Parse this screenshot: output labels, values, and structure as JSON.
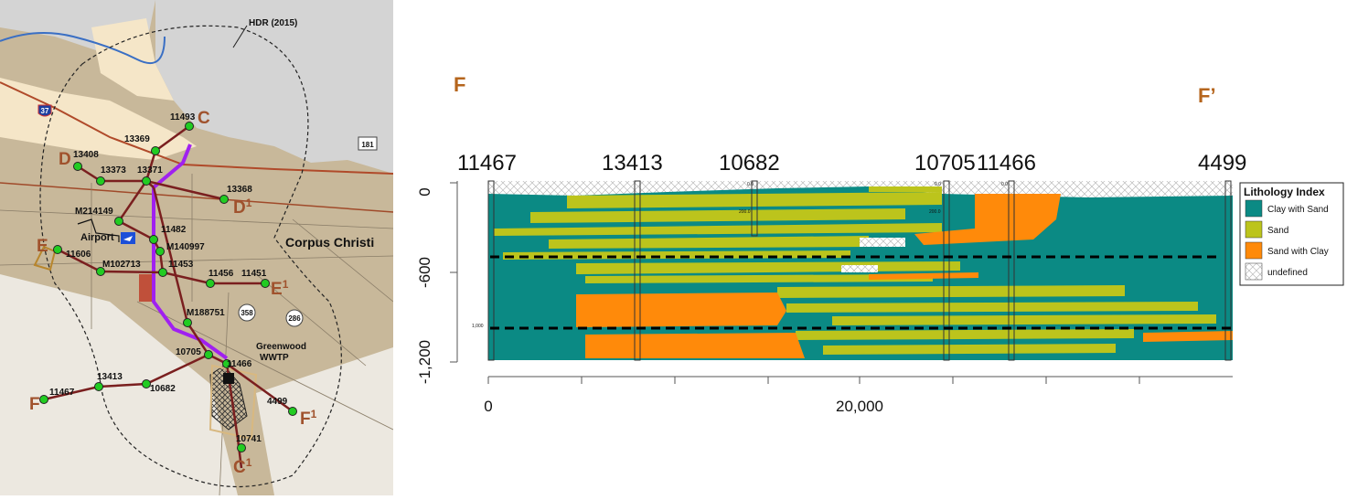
{
  "map": {
    "study_area_label": "HDR (2015)",
    "city_label": "Corpus Christi",
    "airport_label": "Airport",
    "wwtp_label_line1": "Greenwood",
    "wwtp_label_line2": "WWTP",
    "highway_shields": [
      "37",
      "181",
      "358",
      "286"
    ],
    "endpoints": [
      {
        "letter": "C",
        "sup": ""
      },
      {
        "letter": "C",
        "sup": "1"
      },
      {
        "letter": "D",
        "sup": ""
      },
      {
        "letter": "D",
        "sup": "1"
      },
      {
        "letter": "E",
        "sup": ""
      },
      {
        "letter": "E",
        "sup": "1"
      },
      {
        "letter": "F",
        "sup": ""
      },
      {
        "letter": "F",
        "sup": "1"
      }
    ],
    "wells": [
      "11493",
      "13369",
      "13408",
      "13373",
      "13371",
      "13368",
      "M214149",
      "11482",
      "M140997",
      "11606",
      "M102713",
      "11453",
      "11456",
      "11451",
      "M188751",
      "10705",
      "11466",
      "11467",
      "13413",
      "10682",
      "4499",
      "10741"
    ],
    "colors": {
      "land": "#c8b89a",
      "urban": "#f5e6c8",
      "water": "#d4d4d4",
      "route": "#7a1f1f",
      "pipeline": "#a020f0",
      "well": "#22cc22",
      "endpoint": "#a0522d"
    }
  },
  "section": {
    "start_label": "F",
    "end_label": "F’",
    "well_labels": [
      "11467",
      "13413",
      "10682",
      "10705",
      "11466",
      "4499"
    ],
    "y_ticks": [
      "0",
      "-600",
      "-1,200"
    ],
    "x_ticks": [
      "0",
      "20,000"
    ],
    "depth_marks": [
      "0.0",
      "0.0",
      "0.0",
      "200.0",
      "200.0",
      "1,000"
    ],
    "legend_title": "Lithology Index",
    "legend": [
      {
        "label": "Clay with Sand",
        "color": "#0b8a84"
      },
      {
        "label": "Sand",
        "color": "#bcc41c"
      },
      {
        "label": "Sand with Clay",
        "color": "#ff8a0a"
      },
      {
        "label": "undefined",
        "color": "#ffffff"
      }
    ]
  }
}
